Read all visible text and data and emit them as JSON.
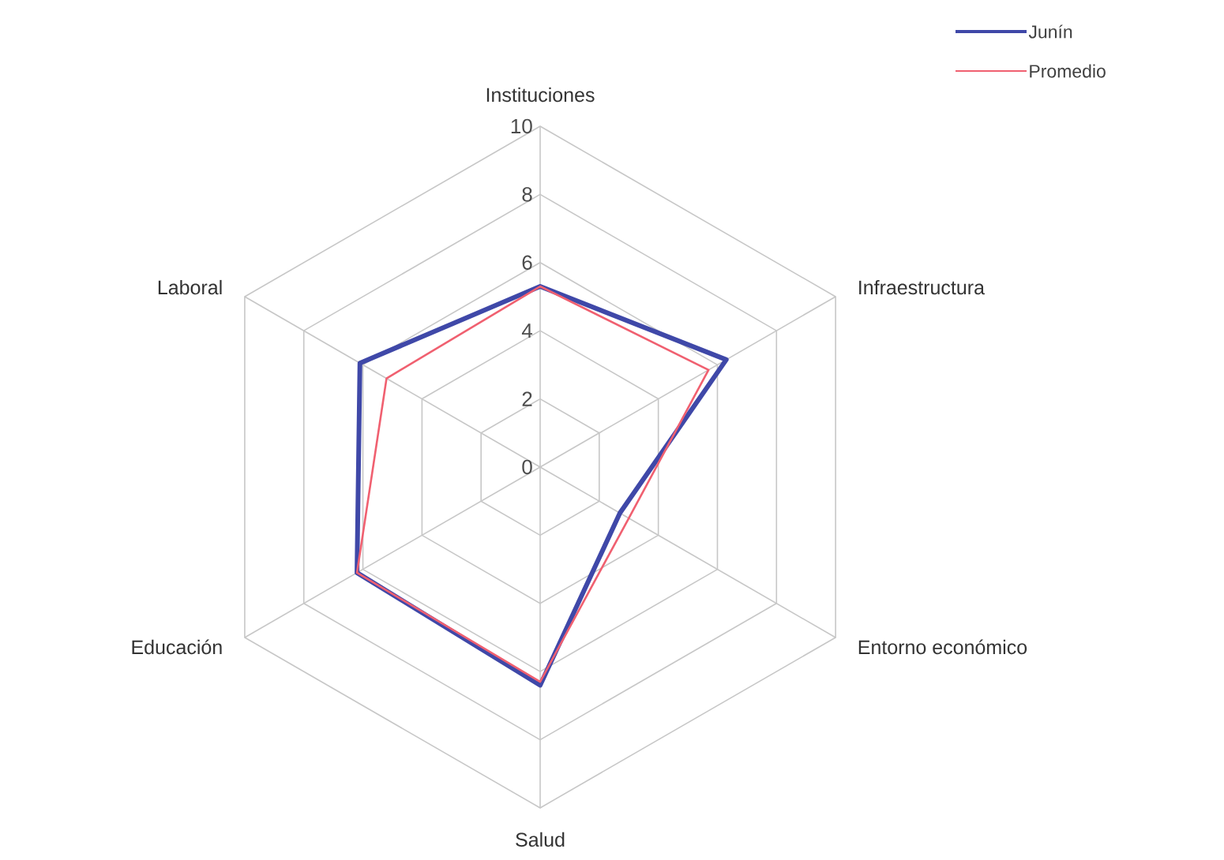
{
  "chart_data": {
    "type": "radar",
    "categories": [
      "Instituciones",
      "Infraestructura",
      "Entorno económico",
      "Salud",
      "Educación",
      "Laboral"
    ],
    "series": [
      {
        "name": "Junín",
        "color": "#3f48a8",
        "values": [
          5.3,
          6.3,
          2.7,
          6.4,
          6.2,
          6.1
        ]
      },
      {
        "name": "Promedio",
        "color": "#f06070",
        "values": [
          5.3,
          5.7,
          3.0,
          6.3,
          6.2,
          5.2
        ]
      }
    ],
    "ylim": [
      0,
      10
    ],
    "yticks": [
      0,
      2,
      4,
      6,
      8,
      10
    ],
    "grid": true,
    "legend": "top right"
  }
}
